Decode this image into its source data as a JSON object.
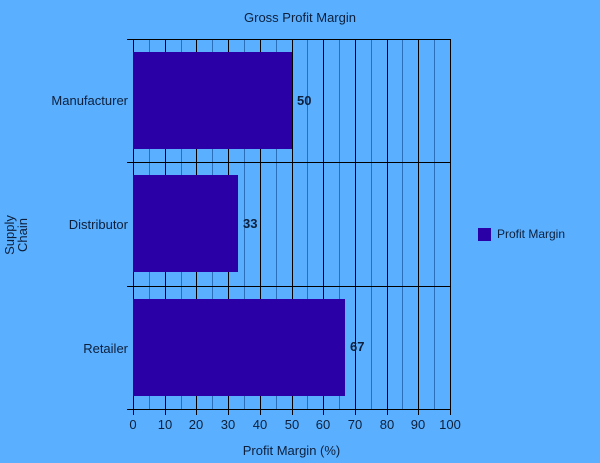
{
  "chart_data": {
    "type": "bar",
    "orientation": "horizontal",
    "title": "Gross Profit Margin",
    "xlabel": "Profit Margin (%)",
    "ylabel": "Supply Chain",
    "categories": [
      "Manufacturer",
      "Distributor",
      "Retailer"
    ],
    "series": [
      {
        "name": "Profit Margin",
        "values": [
          50,
          33,
          67
        ],
        "color": "#2a00a6"
      }
    ],
    "xlim": [
      0,
      100
    ],
    "xticks": [
      "0",
      "10",
      "20",
      "30",
      "40",
      "50",
      "60",
      "70",
      "80",
      "90",
      "100"
    ],
    "grid": true,
    "legend_position": "right",
    "background": "#5ab0fe"
  },
  "labels": {
    "title": "Gross Profit Margin",
    "xlabel": "Profit Margin (%)",
    "ylabel_line1": "Supply",
    "ylabel_line2": "Chain",
    "legend": "Profit Margin",
    "cat0": "Manufacturer",
    "cat1": "Distributor",
    "cat2": "Retailer",
    "val0": "50",
    "val1": "33",
    "val2": "67"
  }
}
